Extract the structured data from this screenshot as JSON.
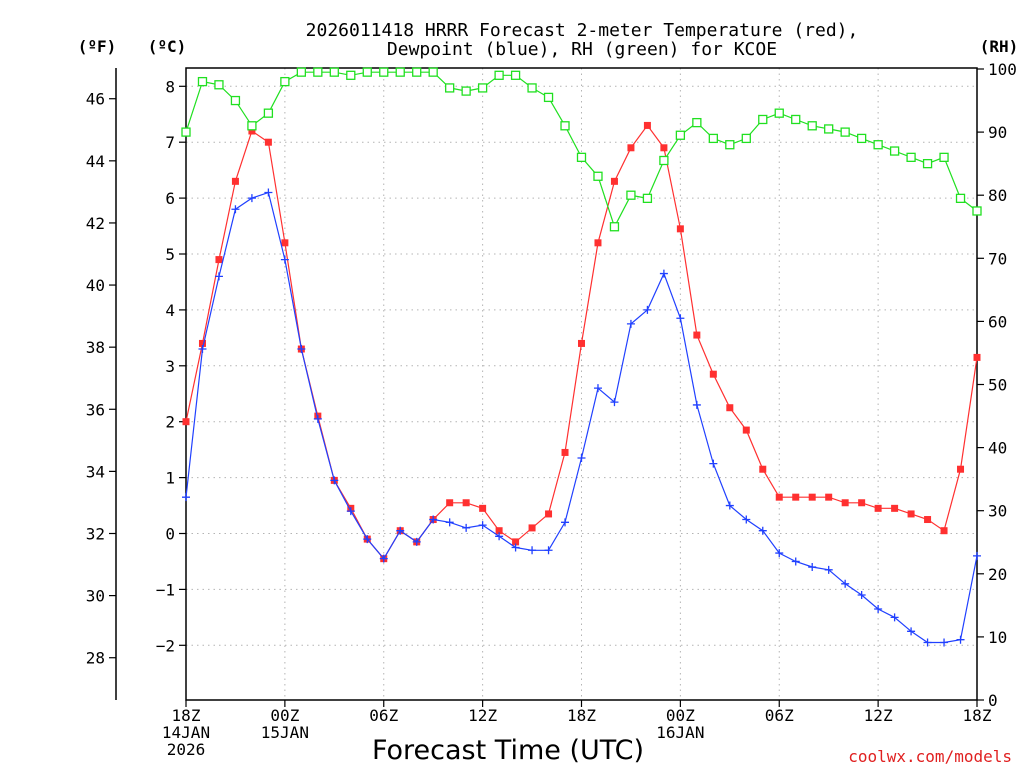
{
  "chart_data": {
    "type": "line",
    "title_line1": "2026011418 HRRR Forecast 2-meter Temperature (red),",
    "title_line2": "Dewpoint (blue), RH (green) for KCOE",
    "unit_f": "(ºF)",
    "unit_c": "(ºC)",
    "unit_rh": "(RH)",
    "xlabel": "Forecast Time (UTC)",
    "credit": "coolwx.com/models",
    "x_range": [
      0,
      48
    ],
    "celsius_range": [
      -2.8,
      8.5
    ],
    "rh_range": [
      0,
      100
    ],
    "x_ticks": [
      {
        "x": 0,
        "lines": [
          "18Z",
          "14JAN",
          "2026"
        ]
      },
      {
        "x": 6,
        "lines": [
          "00Z",
          "15JAN"
        ]
      },
      {
        "x": 12,
        "lines": [
          "06Z"
        ]
      },
      {
        "x": 18,
        "lines": [
          "12Z"
        ]
      },
      {
        "x": 24,
        "lines": [
          "18Z"
        ]
      },
      {
        "x": 30,
        "lines": [
          "00Z",
          "16JAN"
        ]
      },
      {
        "x": 36,
        "lines": [
          "06Z"
        ]
      },
      {
        "x": 42,
        "lines": [
          "12Z"
        ]
      },
      {
        "x": 48,
        "lines": [
          "18Z"
        ]
      }
    ],
    "c_ticks": [
      -2,
      -1,
      0,
      1,
      2,
      3,
      4,
      5,
      6,
      7,
      8
    ],
    "c_tick_labels": [
      "−2",
      "−1",
      "0",
      "1",
      "2",
      "3",
      "4",
      "5",
      "6",
      "7",
      "8"
    ],
    "f_ticks": [
      28,
      30,
      32,
      34,
      36,
      38,
      40,
      42,
      44,
      46
    ],
    "f_tick_labels": [
      "28",
      "30",
      "32",
      "34",
      "36",
      "38",
      "40",
      "42",
      "44",
      "46"
    ],
    "rh_ticks": [
      0,
      10,
      20,
      30,
      40,
      50,
      60,
      70,
      80,
      90,
      100
    ],
    "rh_tick_labels": [
      "0",
      "10",
      "20",
      "30",
      "40",
      "50",
      "60",
      "70",
      "80",
      "90",
      "100"
    ],
    "series": [
      {
        "name": "Temperature",
        "axis": "celsius",
        "color": "#ff3030",
        "marker": "square-filled",
        "values": [
          2.0,
          3.4,
          4.9,
          6.3,
          7.2,
          7.0,
          5.2,
          3.3,
          2.1,
          0.95,
          0.45,
          -0.1,
          -0.45,
          0.05,
          -0.15,
          0.25,
          0.55,
          0.55,
          0.45,
          0.05,
          -0.15,
          0.1,
          0.35,
          1.45,
          3.4,
          5.2,
          6.3,
          6.9,
          7.3,
          6.9,
          5.45,
          3.55,
          2.85,
          2.25,
          1.85,
          1.15,
          0.65,
          0.65,
          0.65,
          0.65,
          0.55,
          0.55,
          0.45,
          0.45,
          0.35,
          0.25,
          0.05,
          1.15,
          3.15
        ]
      },
      {
        "name": "Dewpoint",
        "axis": "celsius",
        "color": "#2040ff",
        "marker": "plus",
        "values": [
          0.65,
          3.3,
          4.6,
          5.8,
          6.0,
          6.1,
          4.9,
          3.3,
          2.05,
          0.95,
          0.4,
          -0.1,
          -0.45,
          0.05,
          -0.15,
          0.25,
          0.2,
          0.1,
          0.15,
          -0.05,
          -0.25,
          -0.3,
          -0.3,
          0.2,
          1.35,
          2.6,
          2.35,
          3.75,
          4.0,
          4.65,
          3.85,
          2.3,
          1.25,
          0.5,
          0.25,
          0.05,
          -0.35,
          -0.5,
          -0.6,
          -0.65,
          -0.9,
          -1.1,
          -1.35,
          -1.5,
          -1.75,
          -1.95,
          -1.95,
          -1.9,
          -0.4
        ]
      },
      {
        "name": "RH",
        "axis": "rh",
        "color": "#20e020",
        "marker": "square-open",
        "values": [
          90,
          98,
          97.5,
          95,
          91,
          93,
          98,
          99.5,
          99.5,
          99.5,
          99,
          99.5,
          99.5,
          99.5,
          99.5,
          99.5,
          97,
          96.5,
          97,
          99,
          99,
          97,
          95.5,
          91,
          86,
          83,
          75,
          80,
          79.5,
          85.5,
          89.5,
          91.5,
          89,
          88,
          89,
          92,
          93,
          92,
          91,
          90.5,
          90,
          89,
          88,
          87,
          86,
          85,
          86,
          79.5,
          77.5
        ]
      }
    ]
  }
}
